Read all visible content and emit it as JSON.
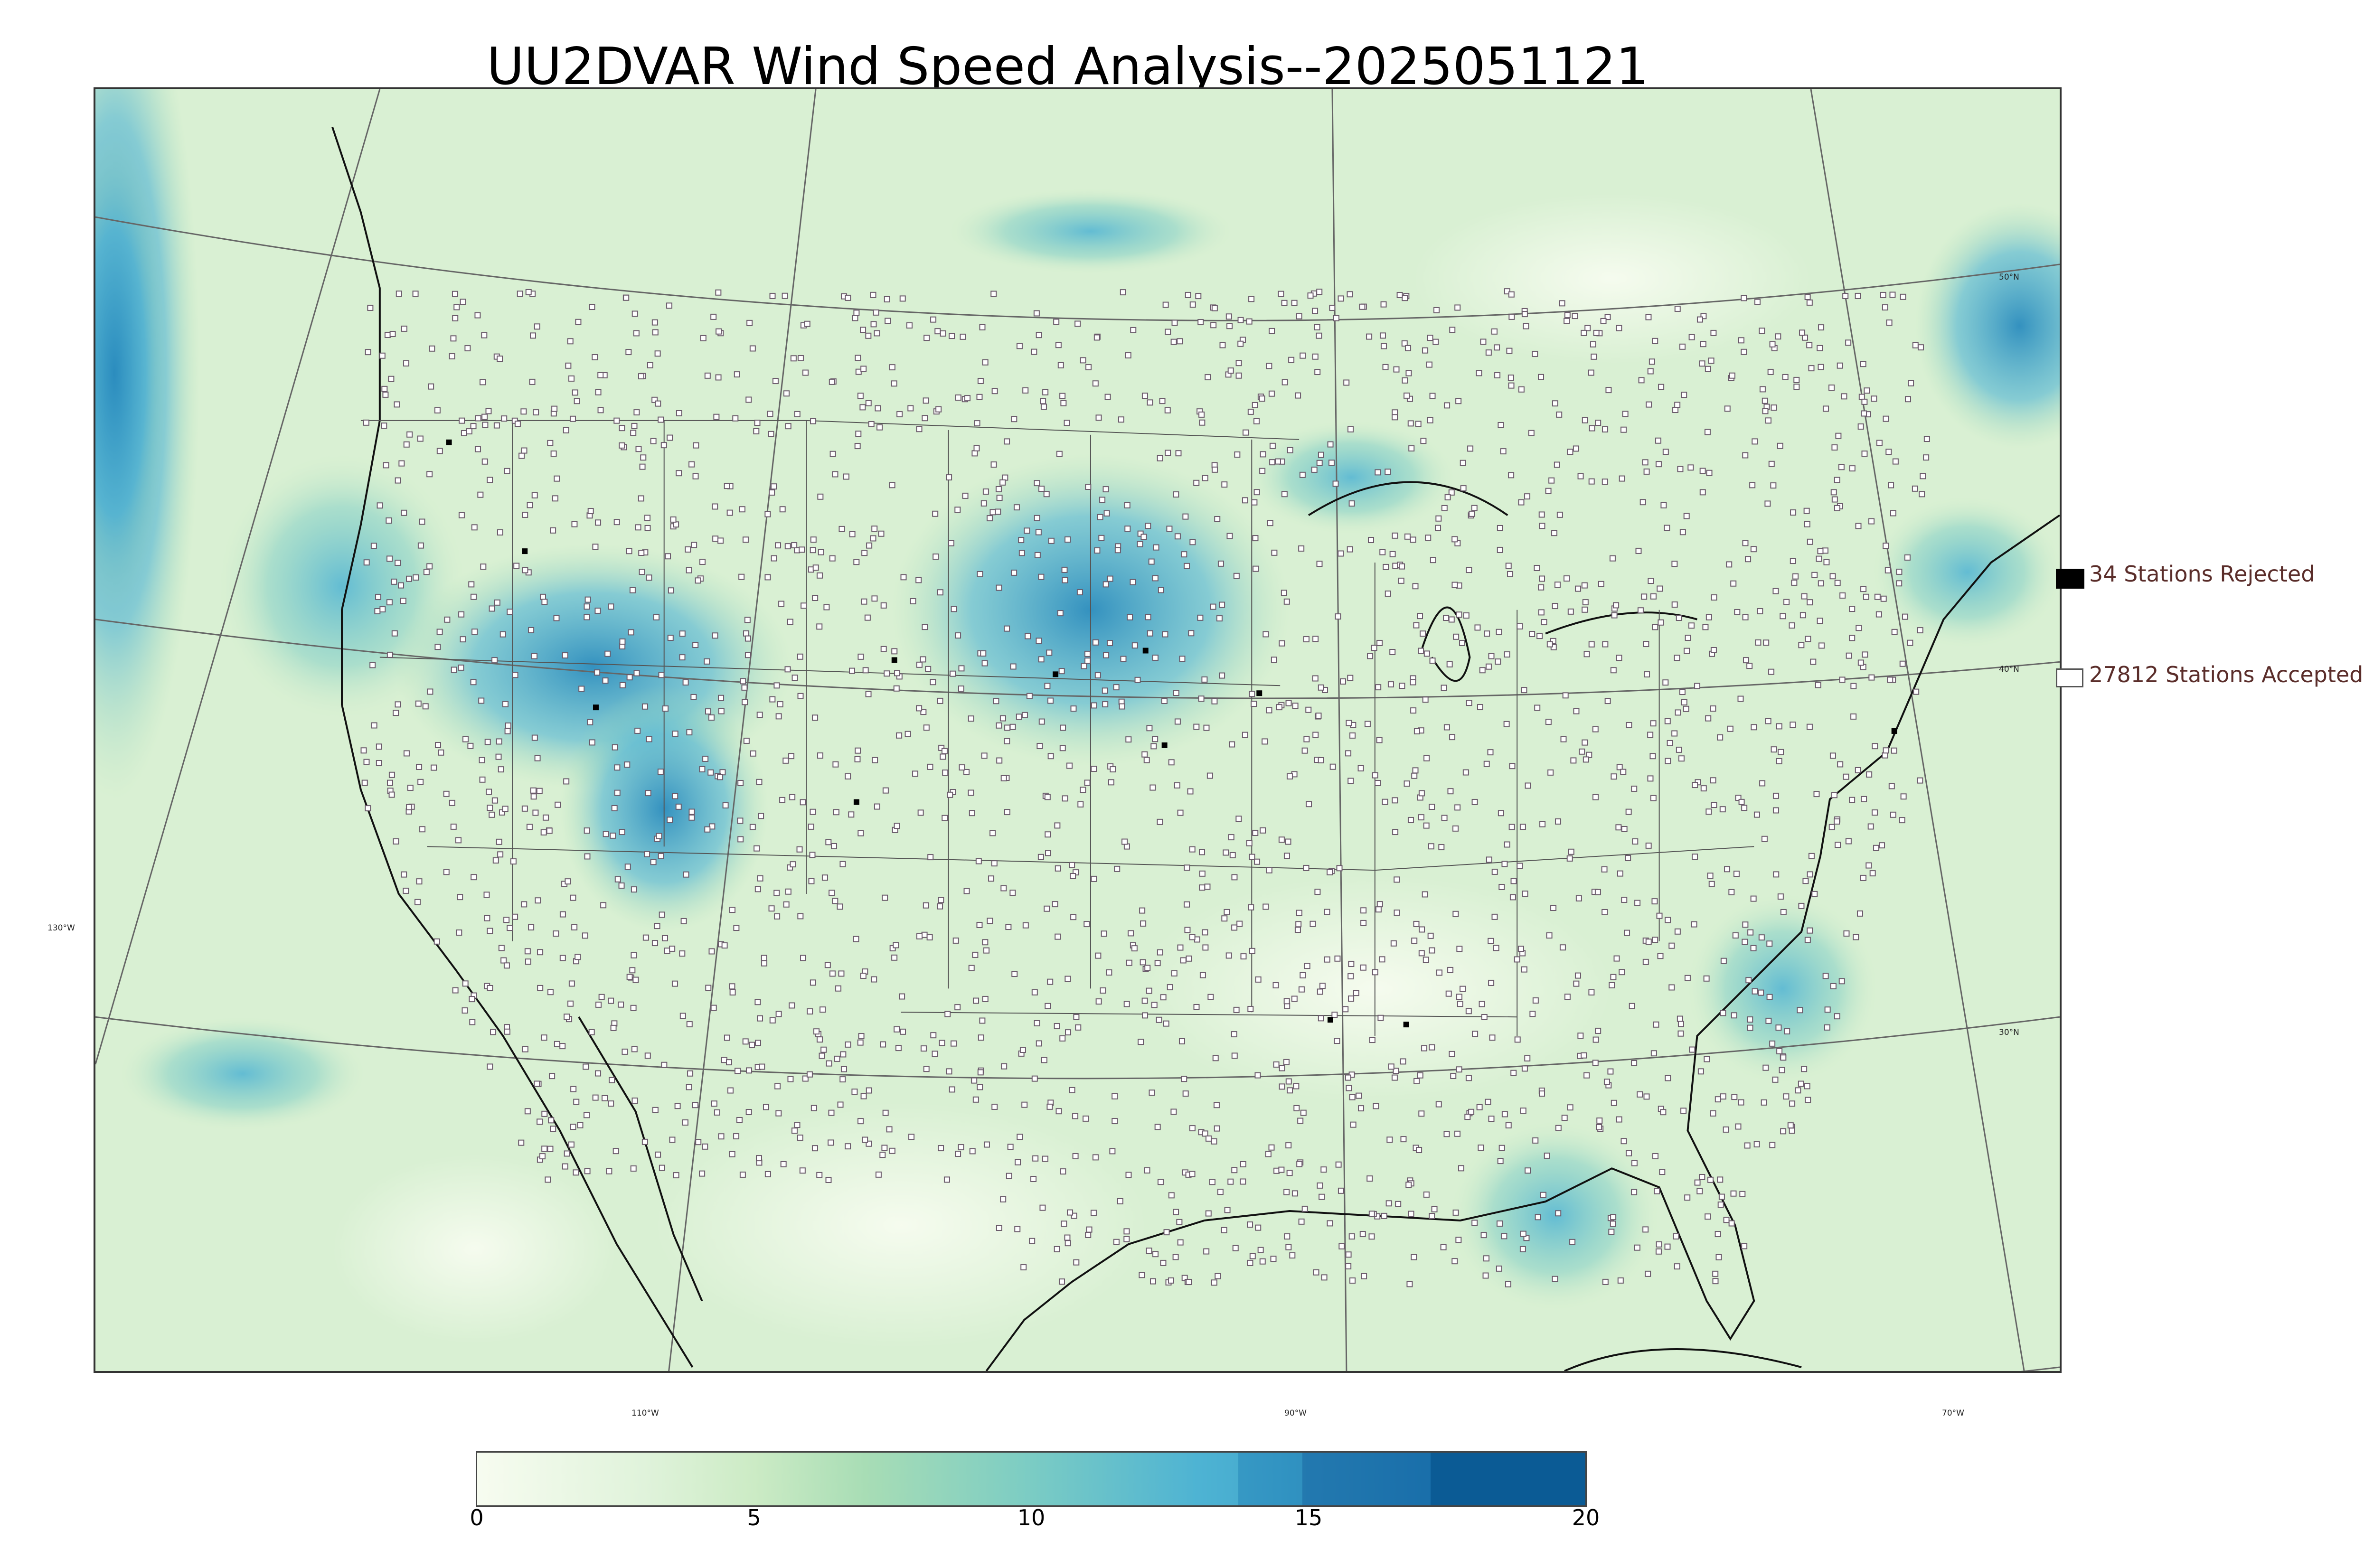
{
  "title": "UU2DVAR Wind Speed Analysis--2025051121",
  "map": {
    "lat_labels": [
      "50°N",
      "40°N",
      "30°N"
    ],
    "lon_labels": [
      "130°W",
      "110°W",
      "90°W",
      "70°W"
    ]
  },
  "legend": {
    "rejected": "34 Stations Rejected",
    "accepted": "27812 Stations Accepted"
  },
  "colorbar": {
    "ticks": [
      "0",
      "5",
      "10",
      "15",
      "20"
    ],
    "range": [
      0,
      20
    ],
    "colors": [
      "#f7fcf0",
      "#ccebc5",
      "#7bccc4",
      "#4eb3d3",
      "#2b8cbe",
      "#084081"
    ]
  }
}
